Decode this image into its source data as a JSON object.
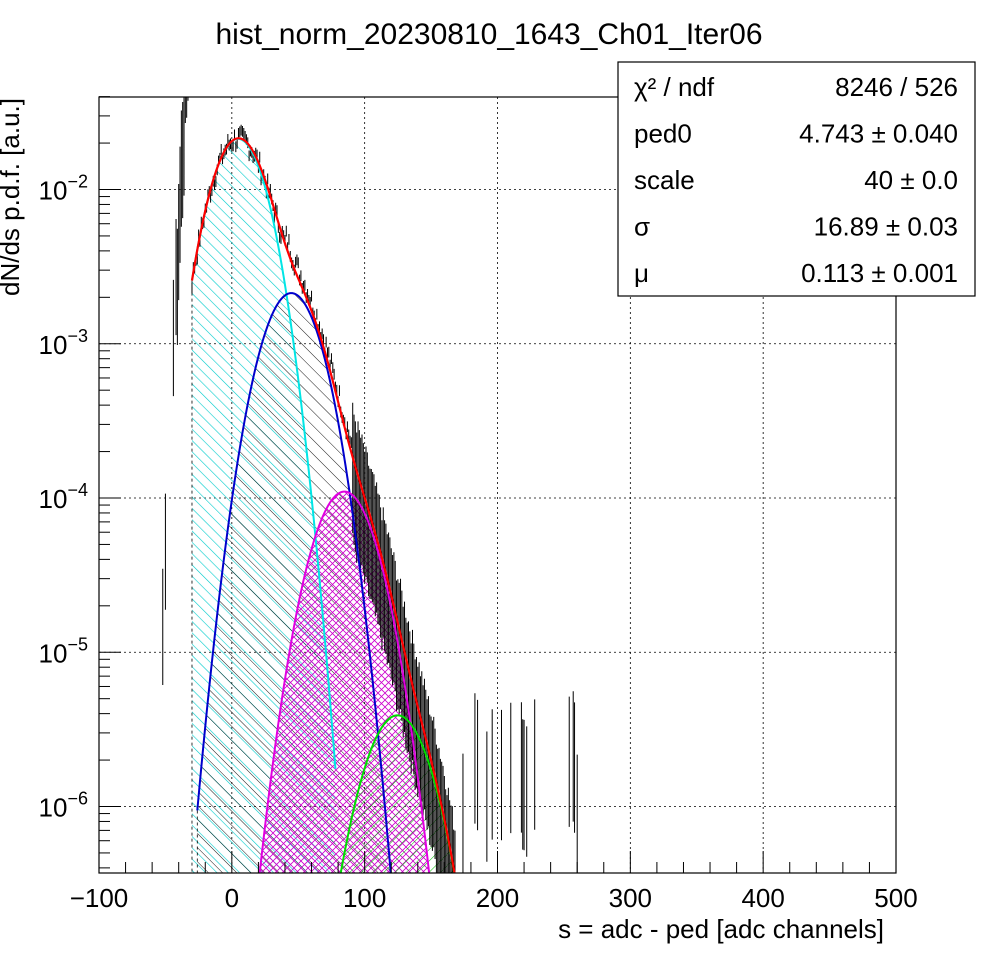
{
  "chart_data": {
    "type": "line",
    "title": "hist_norm_20230810_1643_Ch01_Iter06",
    "xlabel": "s = adc - ped [adc channels]",
    "ylabel": "dN/ds p.d.f. [a.u.]",
    "xlim": [
      -100,
      500
    ],
    "ylim": [
      3.5e-07,
      0.04
    ],
    "yscale": "log",
    "grid": true,
    "x_ticks": [
      "−100",
      "0",
      "100",
      "200",
      "300",
      "400",
      "500"
    ],
    "x_tick_values": [
      -100,
      0,
      100,
      200,
      300,
      400,
      500
    ],
    "y_tick_values": [
      0.01,
      0.001,
      0.0001,
      1e-05,
      1e-06
    ],
    "y_ticks": [
      {
        "base": "10",
        "exp": "−2"
      },
      {
        "base": "10",
        "exp": "−3"
      },
      {
        "base": "10",
        "exp": "−4"
      },
      {
        "base": "10",
        "exp": "−5"
      },
      {
        "base": "10",
        "exp": "−6"
      }
    ],
    "stats_box": {
      "position": "top-right",
      "rows": [
        {
          "label": "χ² / ndf",
          "value": "8246 / 526"
        },
        {
          "label": "ped0",
          "value": "4.743 ± 0.040"
        },
        {
          "label": "scale",
          "value": "40 ± 0.0"
        },
        {
          "label": "σ",
          "value": "16.89 ± 0.03"
        },
        {
          "label": "μ",
          "value": "0.113 ± 0.001"
        }
      ]
    },
    "fit_params": {
      "ped0": 4.743,
      "scale": 40,
      "sigma": 16.89,
      "mu": 0.113
    },
    "components": [
      {
        "n": 0,
        "amplitude": 0.0213,
        "mean": 4.743,
        "sigma": 16.89,
        "color": "#00e5e5",
        "hatch": "cyan",
        "range": [
          -30,
          78
        ]
      },
      {
        "n": 1,
        "amplitude": 0.00213,
        "mean": 44.743,
        "sigma": 18.0,
        "color": "#0000cc",
        "hatch": "black",
        "range": [
          -26,
          122
        ]
      },
      {
        "n": 2,
        "amplitude": 0.00011,
        "mean": 84.743,
        "sigma": 18.9,
        "color": "#e000e0",
        "hatch": "magenta",
        "range": [
          18,
          155
        ]
      },
      {
        "n": 3,
        "amplitude": 3.9e-06,
        "mean": 124.743,
        "sigma": 19.7,
        "color": "#00dd00",
        "hatch": "green",
        "range": [
          76,
          180
        ]
      }
    ],
    "total_fit": {
      "color": "#ff0000",
      "range": [
        -30,
        178
      ]
    },
    "histogram": {
      "name": "",
      "color": "#000000"
    }
  }
}
